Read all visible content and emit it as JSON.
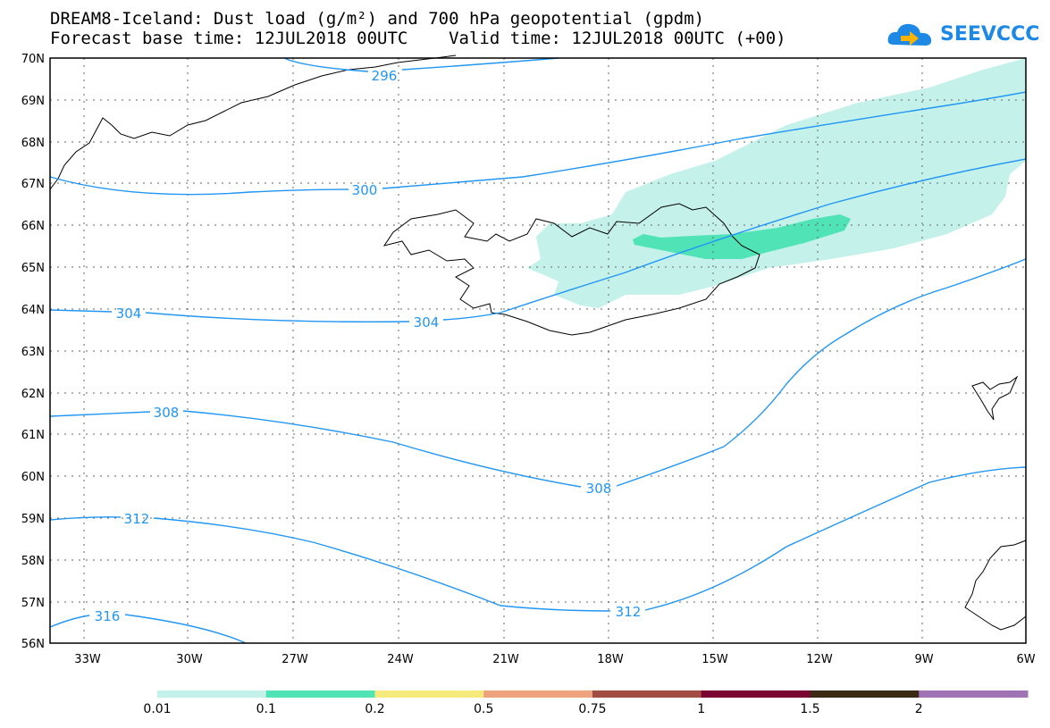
{
  "title": {
    "line1": "DREAM8-Iceland: Dust load (g/m²) and 700 hPa geopotential (gpdm)",
    "line2": "Forecast base time: 12JUL2018 00UTC    Valid time: 12JUL2018 00UTC (+00)"
  },
  "logo": {
    "text": "SEEVCCC",
    "icon": "cloud-arrow-icon"
  },
  "axes": {
    "lat_labels": [
      "70N",
      "69N",
      "68N",
      "67N",
      "66N",
      "65N",
      "64N",
      "63N",
      "62N",
      "61N",
      "60N",
      "59N",
      "58N",
      "57N",
      "56N"
    ],
    "lon_labels": [
      "33W",
      "30W",
      "27W",
      "24W",
      "21W",
      "18W",
      "15W",
      "12W",
      "9W",
      "6W"
    ]
  },
  "contours": {
    "color": "#2196f3",
    "labels": [
      "296",
      "300",
      "304",
      "304",
      "308",
      "308",
      "312",
      "312",
      "316"
    ]
  },
  "colorbar": {
    "colors": [
      "#c4f1ea",
      "#4fe3b5",
      "#f6ea7d",
      "#eea27e",
      "#a24d44",
      "#7b0532",
      "#3c2a14",
      "#a074b4"
    ],
    "labels": [
      "0.01",
      "0.1",
      "0.2",
      "0.5",
      "0.75",
      "1",
      "1.5",
      "2"
    ]
  }
}
